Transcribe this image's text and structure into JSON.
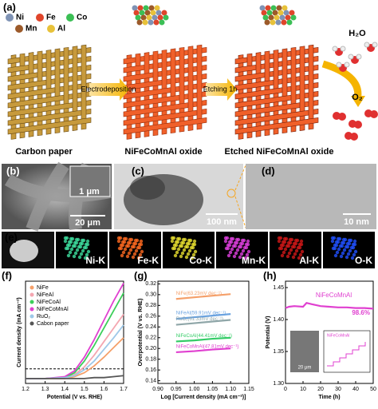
{
  "figure": {
    "panel_a": {
      "label": "(a)",
      "elements": [
        "Ni",
        "Fe",
        "Co",
        "Mn",
        "Al"
      ],
      "arrow_1": "Electrodeposition",
      "arrow_2": "Etching 1h",
      "water": "H₂O",
      "oxygen": "O₂",
      "captions": [
        "Carbon paper",
        "NiFeCoMnAl oxide",
        "Etched NiFeCoMnAl oxide"
      ]
    },
    "panel_b": {
      "label": "(b)",
      "inset_scale": "1 μm",
      "scale": "20 μm"
    },
    "panel_c": {
      "label": "(c)",
      "scale": "100 nm"
    },
    "panel_d": {
      "label": "(d)",
      "scale": "10 nm"
    },
    "panel_e": {
      "label": "(e)",
      "maps": [
        "Ni-K",
        "Fe-K",
        "Co-K",
        "Mn-K",
        "Al-K",
        "O-K"
      ]
    }
  },
  "chart_data": [
    {
      "type": "line",
      "panel": "(f)",
      "xlabel": "Potential (V vs. RHE)",
      "ylabel": "Current density (mA cm⁻²)",
      "x": [
        1.2,
        1.3,
        1.4,
        1.45,
        1.5,
        1.55,
        1.6,
        1.65,
        1.7
      ],
      "xlim": [
        1.2,
        1.7
      ],
      "xticks": [
        1.2,
        1.3,
        1.4,
        1.5,
        1.6,
        1.7
      ],
      "ylim": [
        -5,
        100
      ],
      "reference_line": 10,
      "legend": "upper left",
      "series": [
        {
          "name": "NiFe",
          "color": "#f5a06a",
          "values": [
            0,
            0,
            0,
            2,
            6,
            13,
            22,
            32,
            42
          ]
        },
        {
          "name": "NiFeAl",
          "color": "#f4a6b0",
          "values": [
            0,
            0,
            1,
            4,
            12,
            24,
            38,
            52,
            66
          ]
        },
        {
          "name": "NiFeCoAl",
          "color": "#3ccf5a",
          "values": [
            0,
            0,
            1,
            6,
            18,
            34,
            52,
            70,
            88
          ]
        },
        {
          "name": "NiFeCoMnAl",
          "color": "#e040d0",
          "values": [
            0,
            0,
            2,
            8,
            22,
            40,
            60,
            80,
            98
          ]
        },
        {
          "name": "RuO₂",
          "color": "#9ec8e8",
          "values": [
            0,
            0,
            1,
            3,
            9,
            18,
            30,
            42,
            55
          ]
        },
        {
          "name": "Cabon paper",
          "color": "#555555",
          "values": [
            0,
            0,
            0,
            0,
            0,
            1,
            1,
            2,
            3
          ]
        }
      ]
    },
    {
      "type": "line",
      "panel": "(g)",
      "xlabel": "Log [Current density (mA cm⁻²)]",
      "ylabel": "Overpotential (V vs. RHE)",
      "x": [
        0.95,
        1.0,
        1.05,
        1.1
      ],
      "xlim": [
        0.9,
        1.15
      ],
      "xticks": [
        {
          "value": 0.9,
          "label": "0.90"
        },
        0.95,
        {
          "value": 1.0,
          "label": "1.00"
        },
        1.05,
        {
          "value": 1.1,
          "label": "1.10"
        },
        1.15
      ],
      "ylim": [
        0.135,
        0.325
      ],
      "yticks": [
        0.14,
        0.16,
        0.18,
        {
          "value": 0.2,
          "label": "0.20"
        },
        0.22,
        0.24,
        0.26,
        0.28,
        {
          "value": 0.3,
          "label": "0.30"
        },
        0.32
      ],
      "legend": "inline",
      "series": [
        {
          "name": "NiFe(63.23mV dec⁻¹)",
          "color": "#f5a06a",
          "values": [
            0.292,
            0.295,
            0.298,
            0.301
          ]
        },
        {
          "name": "NiFeAl(59.91mV dec⁻¹)",
          "color": "#6ba3e0",
          "values": [
            0.255,
            0.258,
            0.261,
            0.264
          ]
        },
        {
          "name": "RuO₂(61.33mV dec⁻¹)",
          "color": "#8fa6a8",
          "values": [
            0.244,
            0.247,
            0.25,
            0.253
          ]
        },
        {
          "name": "NiFeCoAl(44.41mV dec⁻¹)",
          "color": "#33cc66",
          "values": [
            0.213,
            0.215,
            0.218,
            0.22
          ]
        },
        {
          "name": "NiFeCoMnAl(47.81mV dec⁻¹)",
          "color": "#e040d0",
          "values": [
            0.193,
            0.195,
            0.198,
            0.2
          ]
        }
      ]
    },
    {
      "type": "line",
      "panel": "(h)",
      "xlabel": "Time (h)",
      "ylabel": "Potential (V)",
      "x": [
        0,
        2,
        5,
        10,
        12,
        15,
        20,
        25,
        30,
        35,
        40,
        45,
        50
      ],
      "xlim": [
        0,
        50
      ],
      "xticks": [
        0,
        10,
        20,
        30,
        40,
        50
      ],
      "ylim": [
        1.3,
        1.46
      ],
      "yticks": [
        {
          "value": 1.3,
          "label": "1.30"
        },
        1.35,
        {
          "value": 1.4,
          "label": "1.40"
        },
        1.45
      ],
      "legend": "none",
      "series": [
        {
          "name": "NiFeCoMnAl",
          "color": "#e040d0",
          "values": [
            1.418,
            1.42,
            1.421,
            1.42,
            1.426,
            1.424,
            1.421,
            1.42,
            1.419,
            1.419,
            1.418,
            1.418,
            1.417
          ]
        }
      ],
      "annotations": [
        "NiFeCoMnAl",
        "98.6%"
      ],
      "inset": {
        "scale": "20 μm",
        "label": "NiFeCoMnAl"
      }
    }
  ]
}
